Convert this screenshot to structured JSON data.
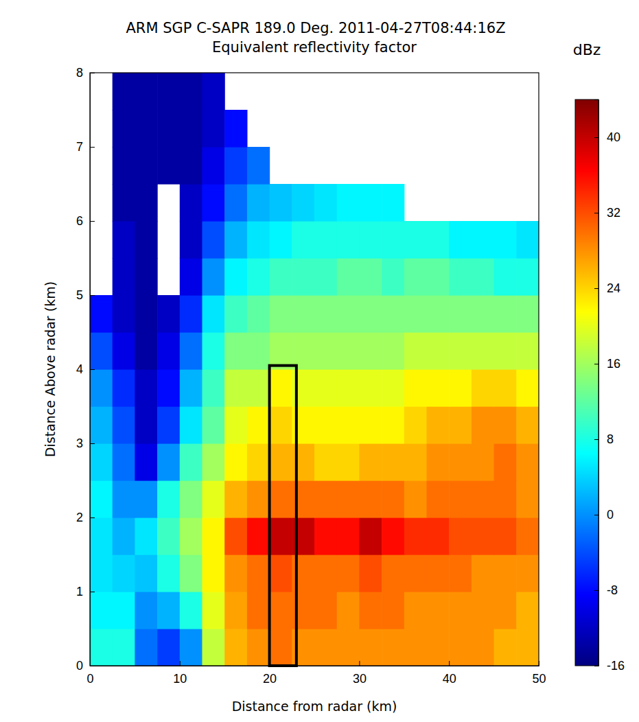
{
  "chart_data": {
    "type": "heatmap",
    "title": "ARM SGP C-SAPR 189.0 Deg. 2011-04-27T08:44:16Z",
    "subtitle": "Equivalent reflectivity factor",
    "x_label": "Distance from radar (km)",
    "y_label": "Distance Above radar  (km)",
    "xlim": [
      0,
      50
    ],
    "ylim": [
      0,
      8
    ],
    "xticks": [
      0,
      10,
      20,
      30,
      40,
      50
    ],
    "yticks": [
      0,
      1,
      2,
      3,
      4,
      5,
      6,
      7,
      8
    ],
    "grid": false,
    "x_edges": [
      0,
      2.5,
      5,
      7.5,
      10,
      12.5,
      15,
      17.5,
      20,
      22.5,
      25,
      27.5,
      30,
      32.5,
      35,
      37.5,
      40,
      42.5,
      45,
      47.5,
      50
    ],
    "y_edges": [
      0,
      0.5,
      1,
      1.5,
      2,
      2.5,
      3,
      3.5,
      4,
      4.5,
      5,
      5.5,
      6,
      6.5,
      7,
      7.5,
      8
    ],
    "z": [
      [
        8,
        8,
        -2,
        -5,
        0,
        18,
        26,
        28,
        30,
        28,
        28,
        28,
        28,
        28,
        28,
        28,
        28,
        28,
        26,
        26
      ],
      [
        6,
        6,
        0,
        2,
        8,
        20,
        27,
        30,
        30,
        30,
        30,
        28,
        30,
        30,
        28,
        28,
        28,
        28,
        28,
        26
      ],
      [
        5,
        4,
        3,
        8,
        14,
        22,
        28,
        30,
        32,
        30,
        30,
        30,
        32,
        30,
        30,
        30,
        30,
        28,
        28,
        28
      ],
      [
        5,
        2,
        5,
        10,
        16,
        22,
        32,
        36,
        40,
        40,
        36,
        36,
        40,
        36,
        34,
        34,
        32,
        32,
        32,
        30
      ],
      [
        6,
        0,
        0,
        8,
        14,
        20,
        26,
        28,
        30,
        30,
        30,
        30,
        30,
        30,
        28,
        30,
        30,
        30,
        30,
        28
      ],
      [
        4,
        -2,
        -10,
        0,
        10,
        16,
        22,
        24,
        26,
        26,
        24,
        24,
        26,
        26,
        26,
        28,
        28,
        28,
        30,
        28
      ],
      [
        2,
        -4,
        -12,
        -5,
        5,
        12,
        20,
        22,
        24,
        22,
        22,
        22,
        22,
        22,
        24,
        26,
        26,
        28,
        28,
        26
      ],
      [
        0,
        -6,
        -12,
        -8,
        2,
        10,
        18,
        18,
        22,
        20,
        20,
        20,
        20,
        20,
        22,
        22,
        22,
        24,
        24,
        22
      ],
      [
        -4,
        -10,
        -14,
        -10,
        -2,
        8,
        14,
        14,
        16,
        16,
        16,
        16,
        16,
        16,
        18,
        18,
        18,
        18,
        18,
        18
      ],
      [
        -8,
        -12,
        -14,
        -12,
        -6,
        5,
        10,
        12,
        14,
        14,
        14,
        14,
        14,
        14,
        14,
        14,
        14,
        14,
        14,
        14
      ],
      [
        null,
        -12,
        -14,
        null,
        -10,
        0,
        6,
        8,
        10,
        10,
        10,
        12,
        12,
        10,
        12,
        12,
        10,
        10,
        8,
        8
      ],
      [
        null,
        -12,
        -14,
        null,
        -12,
        -4,
        2,
        5,
        6,
        8,
        8,
        8,
        8,
        8,
        8,
        8,
        6,
        6,
        6,
        5
      ],
      [
        null,
        -14,
        -14,
        null,
        -12,
        -8,
        -2,
        2,
        3,
        4,
        5,
        6,
        6,
        6,
        null,
        null,
        null,
        null,
        null,
        null
      ],
      [
        null,
        -14,
        -14,
        -14,
        -14,
        -10,
        -5,
        -2,
        null,
        null,
        null,
        null,
        null,
        null,
        null,
        null,
        null,
        null,
        null,
        null
      ],
      [
        null,
        -14,
        -14,
        -14,
        -14,
        -12,
        -8,
        null,
        null,
        null,
        null,
        null,
        null,
        null,
        null,
        null,
        null,
        null,
        null,
        null
      ],
      [
        null,
        -14,
        -14,
        -14,
        -14,
        -12,
        null,
        null,
        null,
        null,
        null,
        null,
        null,
        null,
        null,
        null,
        null,
        null,
        null,
        null
      ]
    ],
    "colorbar": {
      "label": "dBz",
      "range": [
        -16,
        44
      ],
      "ticks": [
        -16,
        -8,
        0,
        8,
        16,
        24,
        32,
        40
      ]
    },
    "box": {
      "x": [
        20,
        23
      ],
      "y": [
        0,
        4.05
      ]
    }
  }
}
